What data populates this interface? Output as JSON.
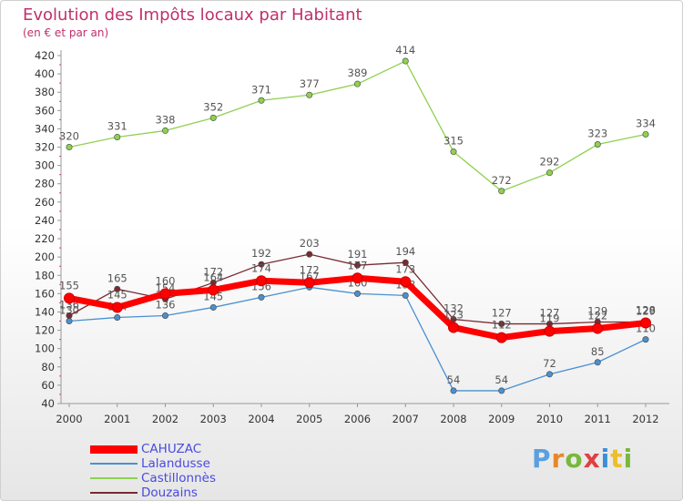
{
  "header": {
    "title": "Evolution des Impôts locaux par Habitant",
    "subtitle": "(en € et par an)"
  },
  "brand": {
    "text": "Proxiti"
  },
  "chart_data": {
    "type": "line",
    "title": "Evolution des Impôts locaux par Habitant",
    "subtitle": "(en € et par an)",
    "xlabel": "",
    "ylabel": "",
    "ylim": [
      40,
      420
    ],
    "ytick_step": 20,
    "grid": false,
    "legend_position": "bottom-left",
    "categories": [
      "2000",
      "2001",
      "2002",
      "2003",
      "2004",
      "2005",
      "2006",
      "2007",
      "2008",
      "2009",
      "2010",
      "2011",
      "2012"
    ],
    "series": [
      {
        "name": "CAHUZAC",
        "color": "#ff0000",
        "values": [
          155,
          145,
          160,
          164,
          174,
          172,
          177,
          173,
          123,
          112,
          119,
          122,
          128
        ]
      },
      {
        "name": "Lalandusse",
        "color": "#4a90d0",
        "values": [
          130,
          134,
          136,
          145,
          156,
          167,
          160,
          158,
          54,
          54,
          72,
          85,
          110
        ]
      },
      {
        "name": "Castillonnès",
        "color": "#8fd050",
        "values": [
          320,
          331,
          338,
          352,
          371,
          377,
          389,
          414,
          315,
          272,
          292,
          323,
          334
        ]
      },
      {
        "name": "Douzains",
        "color": "#7a2a30",
        "values": [
          136,
          165,
          154,
          172,
          192,
          203,
          191,
          194,
          132,
          127,
          127,
          129,
          129
        ]
      }
    ]
  }
}
